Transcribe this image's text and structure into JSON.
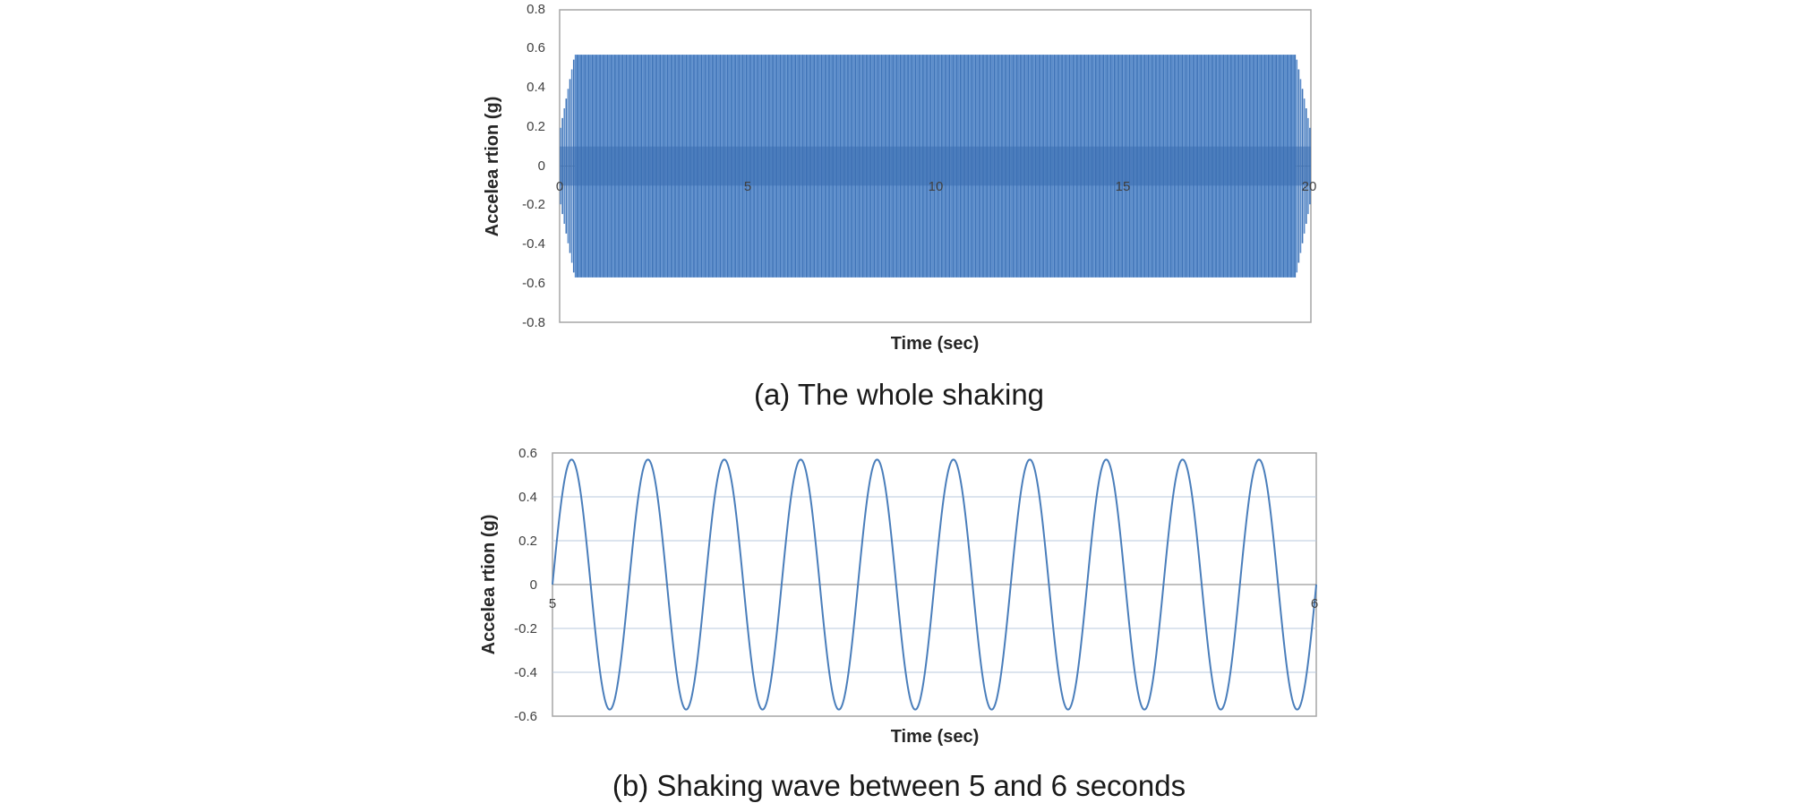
{
  "chart_data": [
    {
      "type": "line",
      "caption": "(a) The whole shaking",
      "xlabel": "Time (sec)",
      "ylabel": "Accelea rtion (g)",
      "xlim": [
        0,
        20
      ],
      "ylim": [
        -0.8,
        0.8
      ],
      "x_ticks": [
        "0",
        "5",
        "10",
        "15",
        "20"
      ],
      "y_ticks": [
        "0.8",
        "0.6",
        "0.4",
        "0.2",
        "0",
        "-0.2",
        "-0.4",
        "-0.6",
        "-0.8"
      ],
      "grid": false,
      "color": "#4a7ebb",
      "series": [
        {
          "amplitude": 0.57,
          "frequency_hz": 10,
          "start": 0,
          "end": 20,
          "ramp_up_end": 0.4,
          "ramp_down_start": 19.6
        }
      ]
    },
    {
      "type": "line",
      "caption": "(b) Shaking wave between 5 and 6 seconds",
      "xlabel": "Time (sec)",
      "ylabel": "Accelea rtion (g)",
      "xlim": [
        5,
        6
      ],
      "ylim": [
        -0.6,
        0.6
      ],
      "x_ticks": [
        "5",
        "6"
      ],
      "y_ticks": [
        "0.6",
        "0.4",
        "0.2",
        "0",
        "-0.2",
        "-0.4",
        "-0.6"
      ],
      "grid": true,
      "color": "#4a7ebb",
      "series": [
        {
          "amplitude": 0.57,
          "frequency_hz": 10,
          "start": 5,
          "end": 6
        }
      ]
    }
  ]
}
